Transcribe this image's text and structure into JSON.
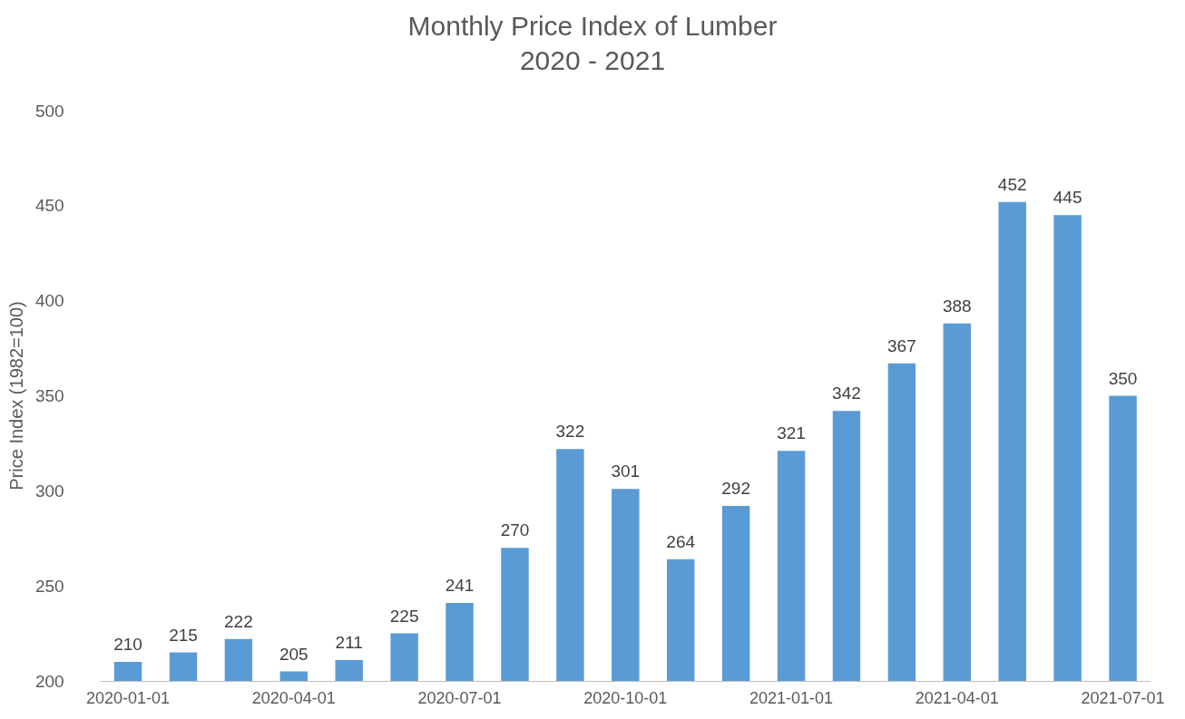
{
  "chart_data": {
    "type": "bar",
    "title": "Monthly Price Index of Lumber",
    "subtitle": "2020 - 2021",
    "ylabel": "Price Index (1982=100)",
    "categories": [
      "2020-01-01",
      null,
      null,
      "2020-04-01",
      null,
      null,
      "2020-07-01",
      null,
      null,
      "2020-10-01",
      null,
      null,
      "2021-01-01",
      null,
      null,
      "2021-04-01",
      null,
      null,
      "2021-07-01"
    ],
    "values": [
      210,
      215,
      222,
      205,
      211,
      225,
      241,
      270,
      322,
      301,
      264,
      292,
      321,
      342,
      367,
      388,
      452,
      445,
      350
    ],
    "color": "#5b9bd5",
    "ylim": [
      200,
      500
    ],
    "yticks": [
      200,
      250,
      300,
      350,
      400,
      450,
      500
    ],
    "grid": false,
    "data_labels": true
  }
}
